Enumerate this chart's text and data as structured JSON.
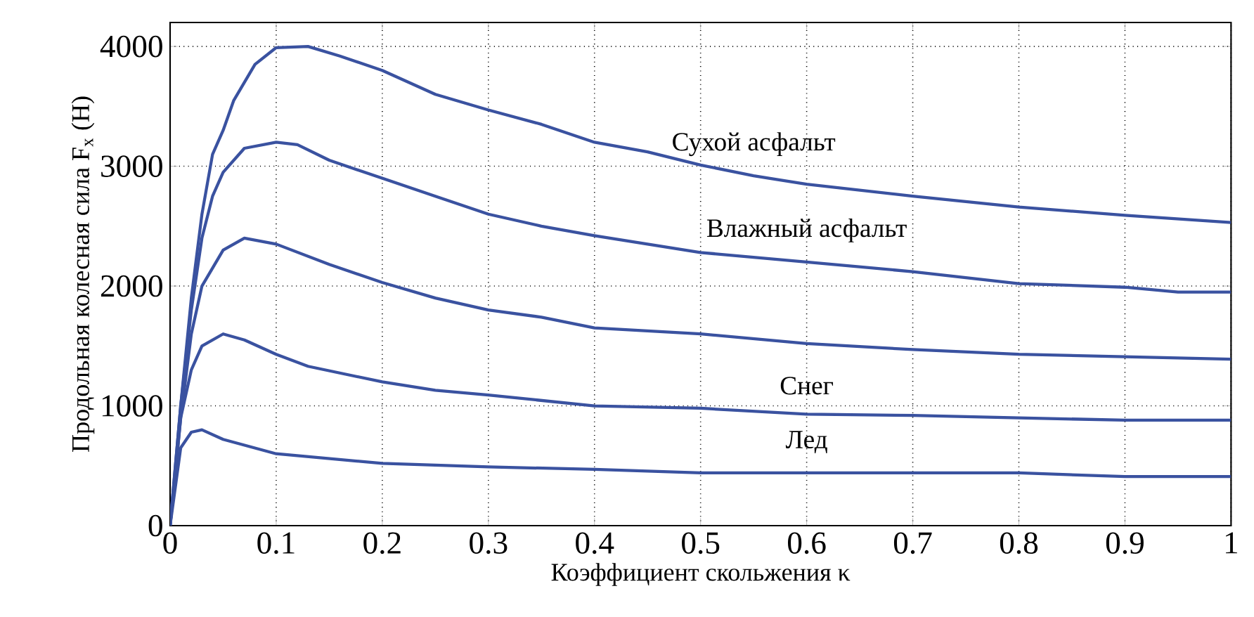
{
  "chart_data": {
    "type": "line",
    "xlabel": "Коэффициент скольжения  κ",
    "ylabel": "Продольная колесная сила F$_{x}$ (Н)",
    "xlim": [
      0,
      1
    ],
    "ylim": [
      0,
      4200
    ],
    "xticks": [
      0,
      0.1,
      0.2,
      0.3,
      0.4,
      0.5,
      0.6,
      0.7,
      0.8,
      0.9,
      1
    ],
    "yticks": [
      0,
      1000,
      2000,
      3000,
      4000
    ],
    "grid": true,
    "series": [
      {
        "name": "Сухой асфальт",
        "color": "#3a52a0",
        "x": [
          0,
          0.01,
          0.02,
          0.03,
          0.04,
          0.05,
          0.06,
          0.08,
          0.1,
          0.13,
          0.16,
          0.2,
          0.25,
          0.3,
          0.35,
          0.4,
          0.45,
          0.5,
          0.55,
          0.6,
          0.7,
          0.8,
          0.9,
          1.0
        ],
        "values": [
          0,
          1000,
          1900,
          2600,
          3100,
          3300,
          3550,
          3850,
          3990,
          4000,
          3920,
          3800,
          3600,
          3470,
          3350,
          3200,
          3120,
          3010,
          2920,
          2850,
          2750,
          2660,
          2590,
          2530
        ]
      },
      {
        "name": "Влажный асфальт",
        "color": "#3a52a0",
        "x": [
          0,
          0.01,
          0.02,
          0.03,
          0.04,
          0.05,
          0.07,
          0.1,
          0.12,
          0.15,
          0.2,
          0.25,
          0.3,
          0.35,
          0.4,
          0.5,
          0.6,
          0.7,
          0.8,
          0.9,
          0.95,
          1.0
        ],
        "values": [
          0,
          1000,
          1800,
          2400,
          2750,
          2950,
          3150,
          3200,
          3180,
          3050,
          2900,
          2750,
          2600,
          2500,
          2420,
          2280,
          2200,
          2120,
          2020,
          1990,
          1950,
          1950
        ]
      },
      {
        "color": "#3a52a0",
        "x": [
          0,
          0.01,
          0.02,
          0.03,
          0.05,
          0.07,
          0.1,
          0.15,
          0.2,
          0.25,
          0.3,
          0.35,
          0.4,
          0.5,
          0.6,
          0.7,
          0.8,
          0.9,
          1.0
        ],
        "values": [
          0,
          900,
          1600,
          2000,
          2300,
          2400,
          2350,
          2180,
          2030,
          1900,
          1800,
          1740,
          1650,
          1600,
          1520,
          1470,
          1430,
          1410,
          1390
        ]
      },
      {
        "name": "Снег",
        "color": "#3a52a0",
        "x": [
          0,
          0.01,
          0.02,
          0.03,
          0.05,
          0.07,
          0.1,
          0.13,
          0.2,
          0.25,
          0.3,
          0.4,
          0.5,
          0.6,
          0.7,
          0.8,
          0.9,
          1.0
        ],
        "values": [
          0,
          900,
          1300,
          1500,
          1600,
          1550,
          1430,
          1330,
          1200,
          1130,
          1090,
          1000,
          980,
          930,
          920,
          900,
          880,
          880
        ]
      },
      {
        "name": "Лед",
        "color": "#3a52a0",
        "x": [
          0,
          0.01,
          0.02,
          0.03,
          0.05,
          0.1,
          0.15,
          0.2,
          0.3,
          0.4,
          0.5,
          0.6,
          0.7,
          0.8,
          0.9,
          1.0
        ],
        "values": [
          0,
          650,
          780,
          800,
          720,
          600,
          560,
          520,
          490,
          470,
          440,
          440,
          440,
          440,
          410,
          410
        ]
      }
    ]
  }
}
